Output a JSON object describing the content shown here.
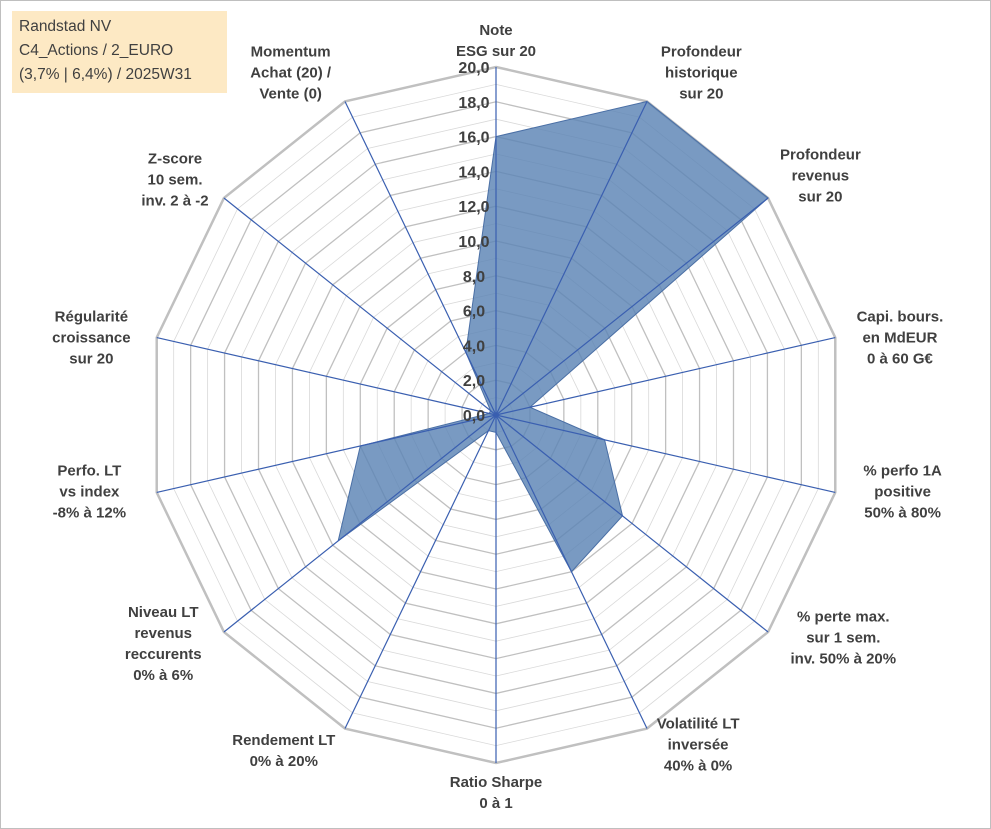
{
  "title_box": {
    "line1": "Randstad NV",
    "line2": "C4_Actions / 2_EURO",
    "line3": "(3,7% | 6,4%) / 2025W31"
  },
  "colors": {
    "fill": "#5b84b5",
    "fill_opacity": 0.82,
    "series_stroke": "#4a6fa5",
    "spoke": "#3a5fb0",
    "grid": "#c0c0c0",
    "title_bg": "#fde9c4"
  },
  "chart_data": {
    "type": "radar",
    "rmin": 0,
    "rmax": 20,
    "tick_step": 2,
    "tick_labels": [
      "0,0",
      "2,0",
      "4,0",
      "6,0",
      "8,0",
      "10,0",
      "12,0",
      "14,0",
      "16,0",
      "18,0",
      "20,0"
    ],
    "categories": [
      [
        "Note",
        "ESG sur 20"
      ],
      [
        "Profondeur",
        "historique",
        "sur 20"
      ],
      [
        "Profondeur",
        "revenus",
        "sur 20"
      ],
      [
        "Capi. bours.",
        "en MdEUR",
        "0 à 60 G€"
      ],
      [
        "% perfo 1A",
        "positive",
        "50% à 80%"
      ],
      [
        "% perte max.",
        "sur 1 sem.",
        "inv. 50% à 20%"
      ],
      [
        "Volatilité LT",
        "inversée",
        "40% à 0%"
      ],
      [
        "Ratio Sharpe",
        "0 à 1"
      ],
      [
        "Rendement LT",
        "0% à 20%"
      ],
      [
        "Niveau LT",
        "revenus",
        "reccurents",
        "0% à 6%"
      ],
      [
        "Perfo. LT",
        "vs index",
        "-8% à 12%"
      ],
      [
        "Régularité",
        "croissance",
        "sur 20"
      ],
      [
        "Z-score",
        "10 sem.",
        "inv. 2 à -2"
      ],
      [
        "Momentum",
        "Achat (20) /",
        "Vente (0)"
      ]
    ],
    "values": [
      16.0,
      20.0,
      20.0,
      2.0,
      6.4,
      9.3,
      10.0,
      1.0,
      1.0,
      11.6,
      8.0,
      0.4,
      0.4,
      4.0
    ],
    "grid": true,
    "legend": "none"
  }
}
